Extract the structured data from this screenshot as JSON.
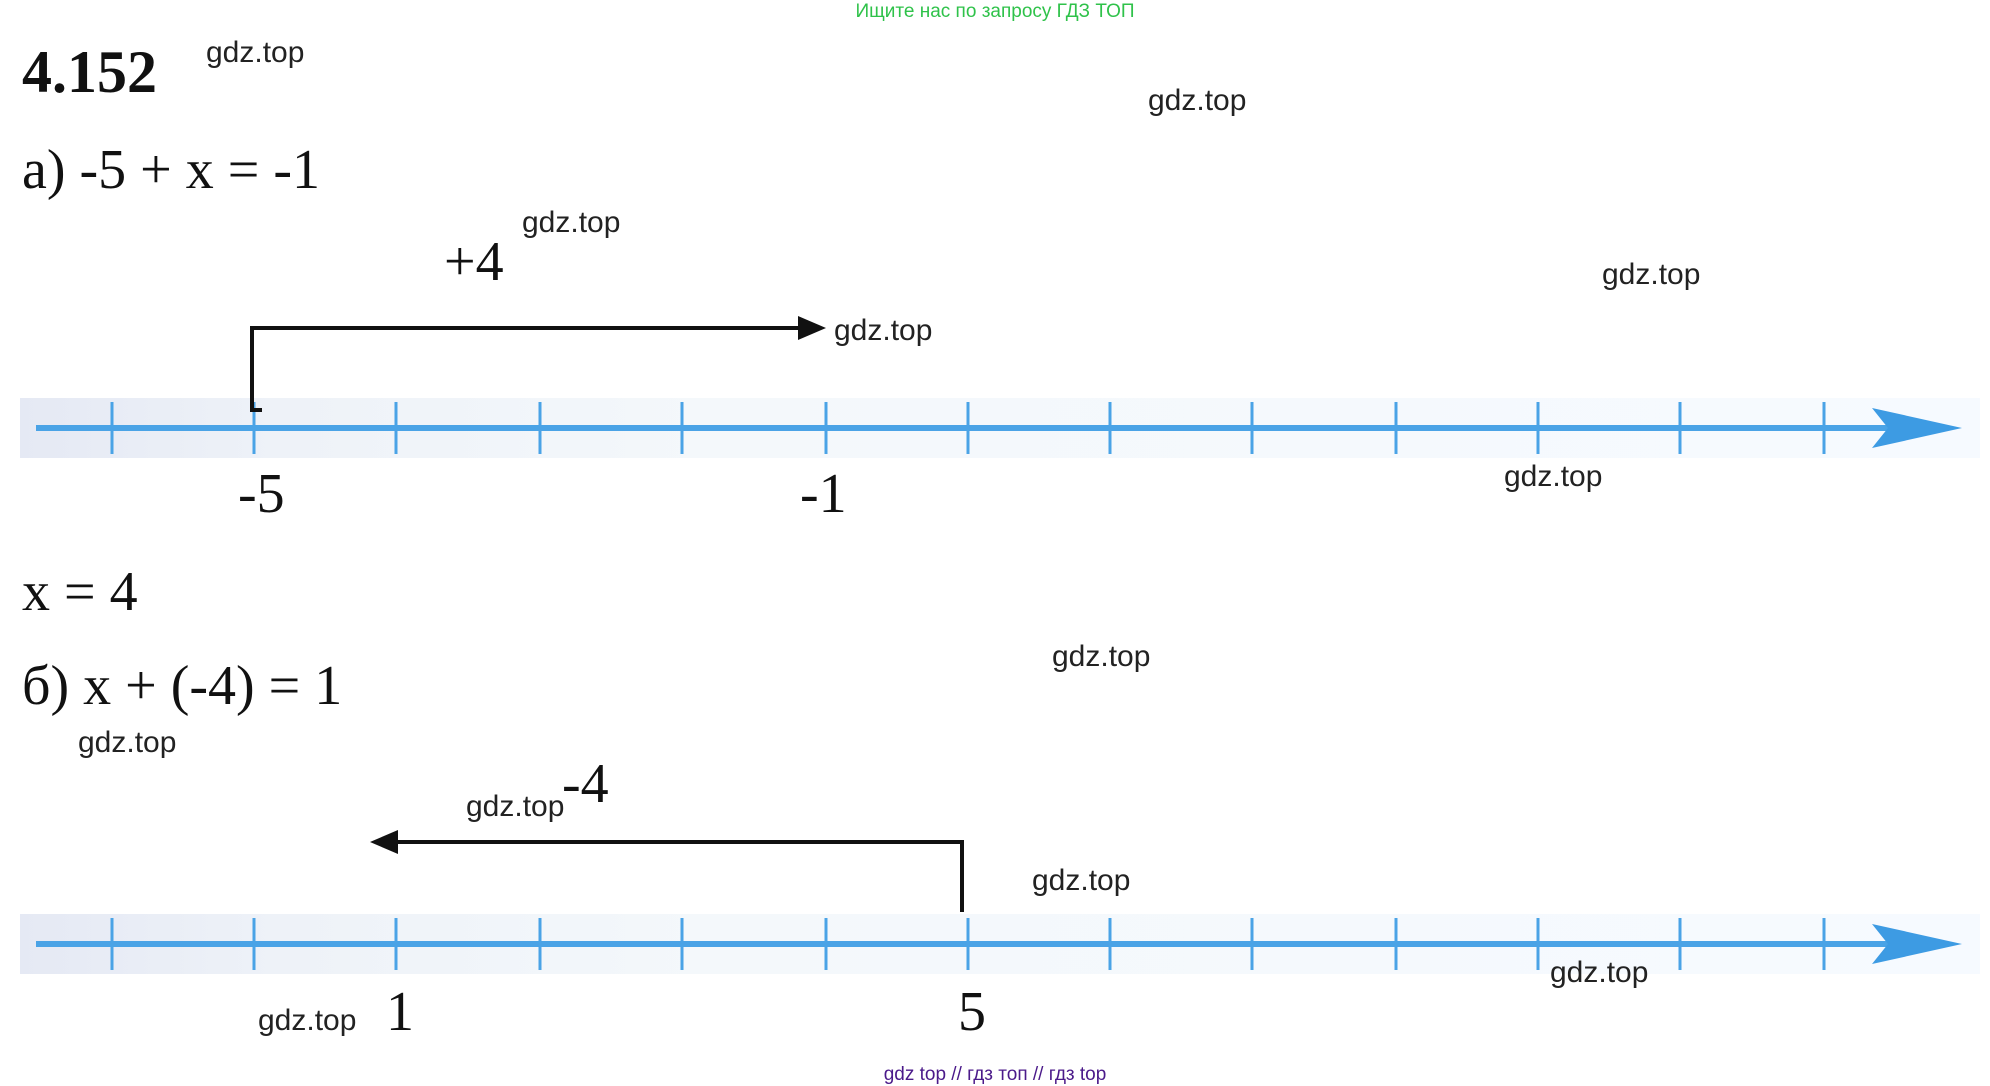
{
  "banner_top": "Ищите нас по запросу ГДЗ ТОП",
  "banner_bottom": "gdz top  //  гдз топ  //  гдз top",
  "problem_number": "4.152",
  "part_a": {
    "equation": "а) -5 + x = -1",
    "step": "+4",
    "labels": [
      "-5",
      "-1"
    ],
    "answer": "x = 4"
  },
  "part_b": {
    "equation": "б) x + (-4) = 1",
    "step": "-4",
    "labels": [
      "1",
      "5"
    ]
  },
  "watermark": "gdz.top",
  "colors": {
    "axis": "#4aa3e6",
    "arrow": "#111111",
    "banner_top": "#2fc24a",
    "banner_bottom": "#4b1a8a"
  }
}
